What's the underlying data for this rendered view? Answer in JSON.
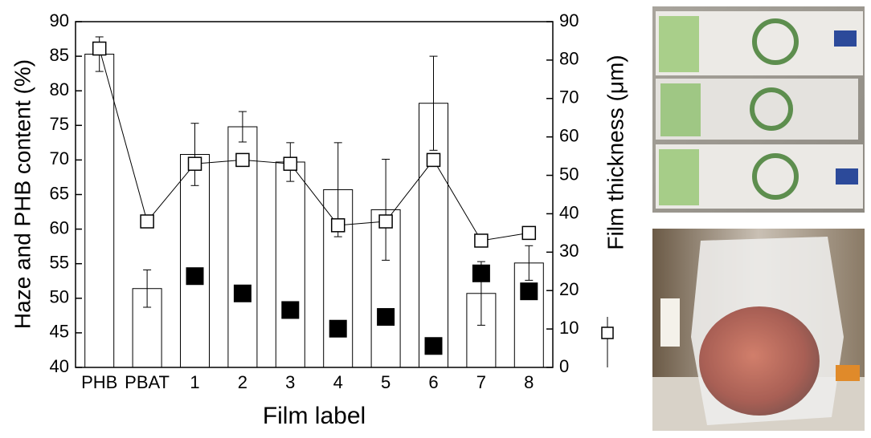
{
  "chart_data": {
    "type": "bar",
    "categories": [
      "PHB",
      "PBAT",
      "1",
      "2",
      "3",
      "4",
      "5",
      "6",
      "7",
      "8"
    ],
    "series": [
      {
        "type": "bar",
        "color": "#ffffff",
        "values": [
          85.3,
          51.4,
          70.8,
          74.8,
          69.7,
          65.7,
          62.8,
          78.2,
          50.7,
          55.1
        ],
        "errors": [
          2.5,
          2.7,
          4.5,
          2.2,
          2.8,
          6.8,
          7.3,
          6.8,
          4.6,
          2.5
        ]
      },
      {
        "type": "scatter",
        "color": "#000000",
        "values": [
          null,
          null,
          53.2,
          50.7,
          48.3,
          45.6,
          47.3,
          43.1,
          53.6,
          51.0
        ]
      },
      {
        "type": "line",
        "axis": "y2",
        "color": "#ffffff",
        "values": [
          83,
          38,
          53,
          54,
          53,
          37,
          38,
          54,
          33,
          35
        ]
      }
    ],
    "xlabel": "Film label",
    "ylabel": "Haze and PHB content (%)",
    "y2label": "Film thickness (μm)",
    "ylim": [
      40,
      90
    ],
    "yticks": [
      40,
      45,
      50,
      55,
      60,
      65,
      70,
      75,
      80,
      85,
      90
    ],
    "y2lim": [
      0,
      90
    ],
    "y2ticks": [
      0,
      10,
      20,
      30,
      40,
      50,
      60,
      70,
      80,
      90
    ]
  }
}
